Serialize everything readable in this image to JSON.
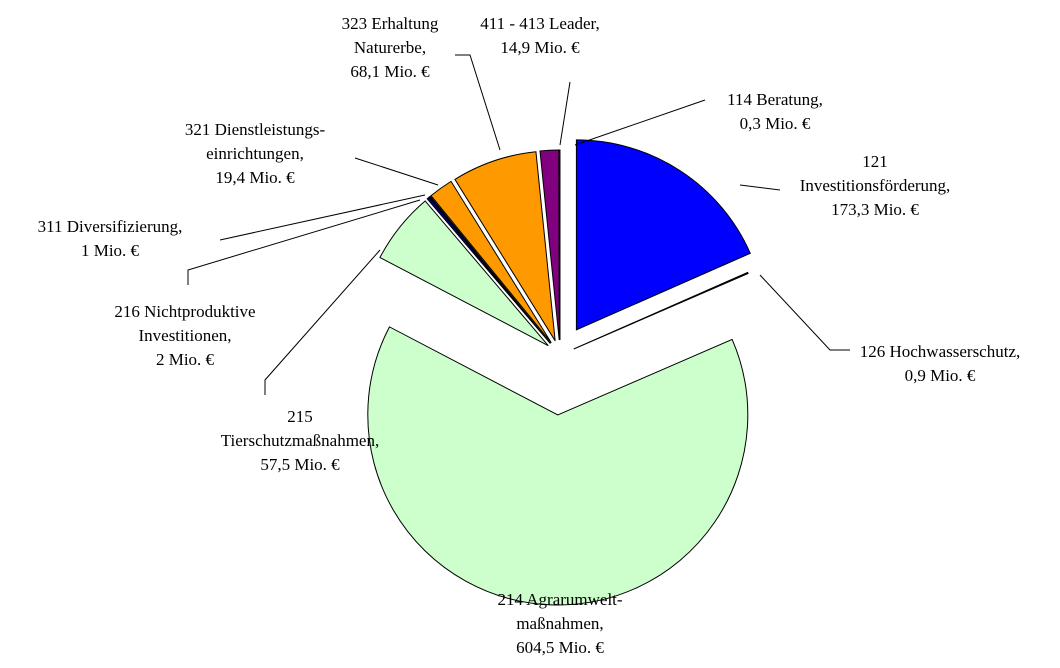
{
  "chart_data": {
    "type": "pie",
    "categories": [
      "121 Investitionsförderung,",
      "126 Hochwasserschutz,",
      "214 Agrarumwelt-maßnahmen,",
      "215 Tierschutzmaßnahmen,",
      "216 Nichtproduktive Investitionen,",
      "311 Diversifizierung,",
      "321 Dienstleistungs-einrichtungen,",
      "323 Erhaltung Naturerbe,",
      "411 - 413 Leader,",
      "114 Beratung,"
    ],
    "values": [
      173.3,
      0.9,
      604.5,
      57.5,
      2,
      1,
      19.4,
      68.1,
      14.9,
      0.3
    ],
    "value_labels": [
      "173,3 Mio. €",
      "0,9 Mio. €",
      "604,5 Mio. €",
      "57,5 Mio. €",
      "2 Mio. €",
      "1 Mio. €",
      "19,4 Mio. €",
      "68,1 Mio. €",
      "14,9 Mio. €",
      "0,3 Mio. €"
    ],
    "colors": [
      "#0000ff",
      "#000080",
      "#ccffcc",
      "#ccffcc",
      "#000080",
      "#000080",
      "#ff9900",
      "#ff9900",
      "#800080",
      "#800080"
    ]
  }
}
